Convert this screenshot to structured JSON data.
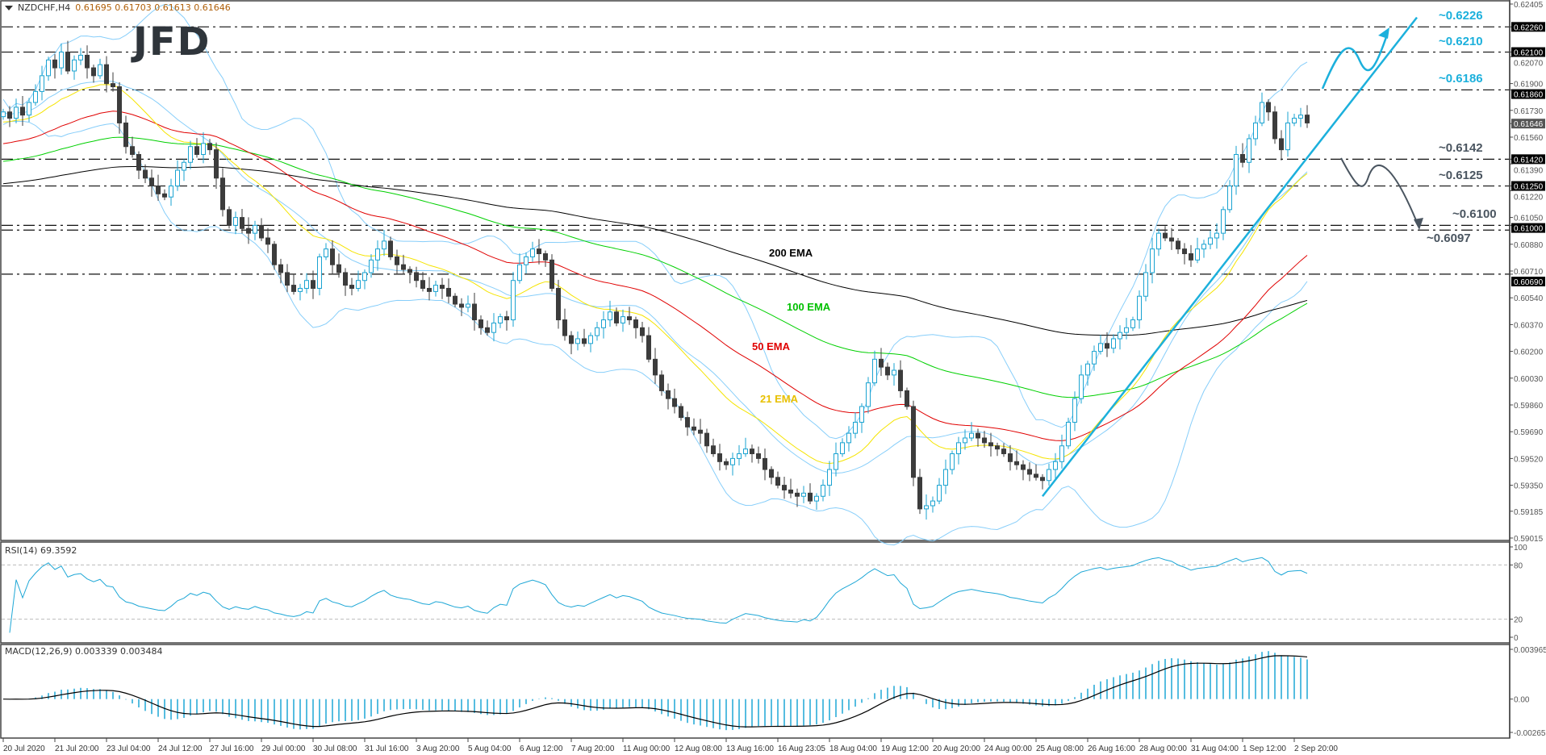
{
  "header": {
    "symbol": "NZDCHF,H4",
    "values": "0.61695 0.61703 0.61613 0.61646"
  },
  "logo": "JFD",
  "rsi_label": "RSI(14) 69.3592",
  "macd_label": "MACD(12,26,9) 0.003339 0.003484",
  "colors": {
    "bull": "#1aa3d1",
    "bear": "#3c3c3c",
    "bollinger": "#87cefa",
    "ema21": "#f5e400",
    "ema50": "#e00000",
    "ema100": "#00d000",
    "ema200": "#000000",
    "rsi": "#1ea7d6",
    "macd_hist": "#1ea7d6",
    "macd_signal": "#000000",
    "level_up": "#1cb0dc",
    "level_down": "#4a5560"
  },
  "ema_labels": [
    {
      "text": "200 EMA",
      "color": "#000000"
    },
    {
      "text": "100 EMA",
      "color": "#00c000"
    },
    {
      "text": "50 EMA",
      "color": "#e00000"
    },
    {
      "text": "21 EMA",
      "color": "#e8c000"
    }
  ],
  "levels": [
    {
      "label": "~0.6226",
      "price": 0.6226,
      "axis": "0.62260",
      "tone": "up"
    },
    {
      "label": "~0.6210",
      "price": 0.621,
      "axis": "0.62100",
      "tone": "up"
    },
    {
      "label": "~0.6186",
      "price": 0.6186,
      "axis": "0.61860",
      "tone": "up"
    },
    {
      "label": "~0.6142",
      "price": 0.6142,
      "axis": "0.61420",
      "tone": "down"
    },
    {
      "label": "~0.6125",
      "price": 0.6125,
      "axis": "0.61250",
      "tone": "down"
    },
    {
      "label": "~0.6100",
      "price": 0.61,
      "axis": "0.61000",
      "tone": "down"
    },
    {
      "label": "~0.6097",
      "price": 0.6097,
      "axis": "",
      "tone": "down"
    },
    {
      "label": "",
      "price": 0.6069,
      "axis": "0.60690",
      "tone": "down"
    }
  ],
  "chart_data": [
    {
      "type": "candlestick",
      "title": "NZDCHF,H4",
      "ylim": [
        0.59015,
        0.62405
      ],
      "y_ticks": [
        "0.62405",
        "0.62070",
        "0.61900",
        "0.61730",
        "0.61560",
        "0.61390",
        "0.61220",
        "0.61050",
        "0.60880",
        "0.60710",
        "0.60540",
        "0.60370",
        "0.60200",
        "0.60030",
        "0.59860",
        "0.59690",
        "0.59520",
        "0.59350",
        "0.59185",
        "0.59015"
      ],
      "x_ticks": [
        "20 Jul 2020",
        "21 Jul 20:00",
        "23 Jul 04:00",
        "24 Jul 12:00",
        "27 Jul 16:00",
        "29 Jul 00:00",
        "30 Jul 08:00",
        "31 Jul 16:00",
        "3 Aug 20:00",
        "5 Aug 04:00",
        "6 Aug 12:00",
        "7 Aug 20:00",
        "11 Aug 00:00",
        "12 Aug 08:00",
        "13 Aug 16:00",
        "16 Aug 23:05",
        "18 Aug 04:00",
        "19 Aug 12:00",
        "20 Aug 20:00",
        "24 Aug 00:00",
        "25 Aug 08:00",
        "26 Aug 16:00",
        "28 Aug 00:00",
        "31 Aug 04:00",
        "1 Sep 12:00",
        "2 Sep 20:00"
      ],
      "bars_per_x_tick": 8,
      "current_price": "0.61646",
      "close": [
        0.6172,
        0.6168,
        0.6175,
        0.617,
        0.6178,
        0.6185,
        0.6195,
        0.6205,
        0.62,
        0.621,
        0.6198,
        0.6205,
        0.6208,
        0.62,
        0.6195,
        0.6202,
        0.619,
        0.6188,
        0.6165,
        0.615,
        0.6145,
        0.6135,
        0.613,
        0.6125,
        0.612,
        0.6118,
        0.6125,
        0.6135,
        0.614,
        0.615,
        0.6145,
        0.6152,
        0.6148,
        0.613,
        0.611,
        0.61,
        0.6105,
        0.6098,
        0.6095,
        0.61,
        0.6092,
        0.6088,
        0.6075,
        0.607,
        0.6062,
        0.6058,
        0.606,
        0.6065,
        0.606,
        0.608,
        0.6085,
        0.6075,
        0.607,
        0.6062,
        0.606,
        0.6065,
        0.607,
        0.6078,
        0.6085,
        0.609,
        0.608,
        0.6075,
        0.6072,
        0.607,
        0.6065,
        0.606,
        0.6058,
        0.6062,
        0.606,
        0.6055,
        0.605,
        0.6048,
        0.605,
        0.604,
        0.6035,
        0.6032,
        0.6038,
        0.6042,
        0.604,
        0.6065,
        0.6075,
        0.608,
        0.6085,
        0.6082,
        0.6078,
        0.606,
        0.604,
        0.603,
        0.6025,
        0.6028,
        0.6025,
        0.603,
        0.6035,
        0.604,
        0.6045,
        0.6038,
        0.6042,
        0.604,
        0.6035,
        0.603,
        0.6015,
        0.6005,
        0.5995,
        0.599,
        0.5985,
        0.5978,
        0.5972,
        0.597,
        0.5968,
        0.596,
        0.5955,
        0.595,
        0.5948,
        0.5952,
        0.5955,
        0.5958,
        0.5955,
        0.5952,
        0.5945,
        0.594,
        0.5935,
        0.5932,
        0.593,
        0.5928,
        0.593,
        0.5925,
        0.5928,
        0.5935,
        0.5945,
        0.5955,
        0.5962,
        0.5968,
        0.5975,
        0.5985,
        0.6,
        0.6015,
        0.601,
        0.6005,
        0.6008,
        0.5995,
        0.5985,
        0.594,
        0.592,
        0.5922,
        0.5925,
        0.5935,
        0.5945,
        0.5955,
        0.5962,
        0.5965,
        0.5968,
        0.5965,
        0.5962,
        0.596,
        0.5958,
        0.5955,
        0.595,
        0.5948,
        0.5945,
        0.5942,
        0.594,
        0.5938,
        0.5945,
        0.595,
        0.596,
        0.5975,
        0.599,
        0.6005,
        0.6012,
        0.602,
        0.6025,
        0.6022,
        0.6028,
        0.6032,
        0.6035,
        0.604,
        0.6055,
        0.607,
        0.6085,
        0.6095,
        0.6092,
        0.609,
        0.6085,
        0.6082,
        0.6078,
        0.6085,
        0.6088,
        0.6092,
        0.6095,
        0.611,
        0.6125,
        0.6145,
        0.614,
        0.6155,
        0.6165,
        0.6178,
        0.6172,
        0.6155,
        0.6148,
        0.6165,
        0.6168,
        0.617,
        0.6165
      ],
      "indicators": {
        "ema_start": {
          "ema21": 0.6165,
          "ema50": 0.6151,
          "ema100": 0.614,
          "ema200": 0.6126
        },
        "bollinger": {
          "period": 20,
          "deviations": 2
        },
        "trendline": {
          "from": {
            "bar": 161,
            "price": 0.5928
          },
          "to": {
            "bar": 219,
            "price": 0.6232
          }
        }
      }
    },
    {
      "type": "line",
      "title": "RSI(14) 69.3592",
      "ylim": [
        0,
        100
      ],
      "y_ticks": [
        "100",
        "80",
        "20",
        "0"
      ],
      "levels": [
        80,
        20
      ],
      "period": 14
    },
    {
      "type": "bar",
      "title": "MACD(12,26,9) 0.003339 0.003484",
      "ylim": [
        -0.002655,
        0.003965
      ],
      "y_ticks": [
        "0.003965",
        "0.00",
        "-0.002655"
      ]
    }
  ]
}
